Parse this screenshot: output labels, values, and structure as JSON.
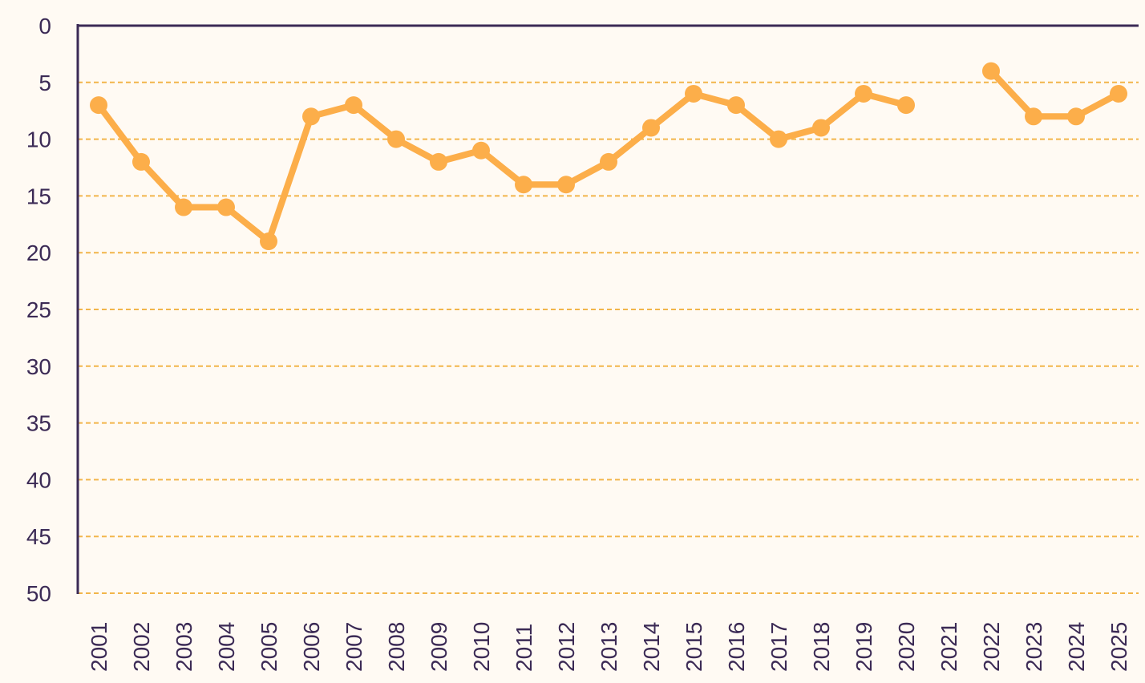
{
  "chart_data": {
    "type": "line",
    "title": "",
    "xlabel": "",
    "ylabel": "",
    "x": [
      "2001",
      "2002",
      "2003",
      "2004",
      "2005",
      "2006",
      "2007",
      "2008",
      "2009",
      "2010",
      "2011",
      "2012",
      "2013",
      "2014",
      "2015",
      "2016",
      "2017",
      "2018",
      "2019",
      "2020",
      "2021",
      "2022",
      "2023",
      "2024",
      "2025"
    ],
    "series": [
      {
        "values": [
          7,
          12,
          16,
          16,
          19,
          8,
          7,
          10,
          12,
          11,
          14,
          14,
          12,
          9,
          6,
          7,
          10,
          9,
          6,
          7,
          null,
          4,
          8,
          8,
          6
        ]
      }
    ],
    "ylim": [
      0,
      50
    ],
    "y_inverted": true,
    "y_ticks": [
      "0",
      "5",
      "10",
      "15",
      "20",
      "25",
      "30",
      "35",
      "40",
      "45",
      "50"
    ],
    "grid": true,
    "legend": "none",
    "colors": {
      "line": "#fcae4a",
      "grid": "#f2b54a",
      "axis": "#3b2a55",
      "background": "#fffaf3"
    }
  }
}
